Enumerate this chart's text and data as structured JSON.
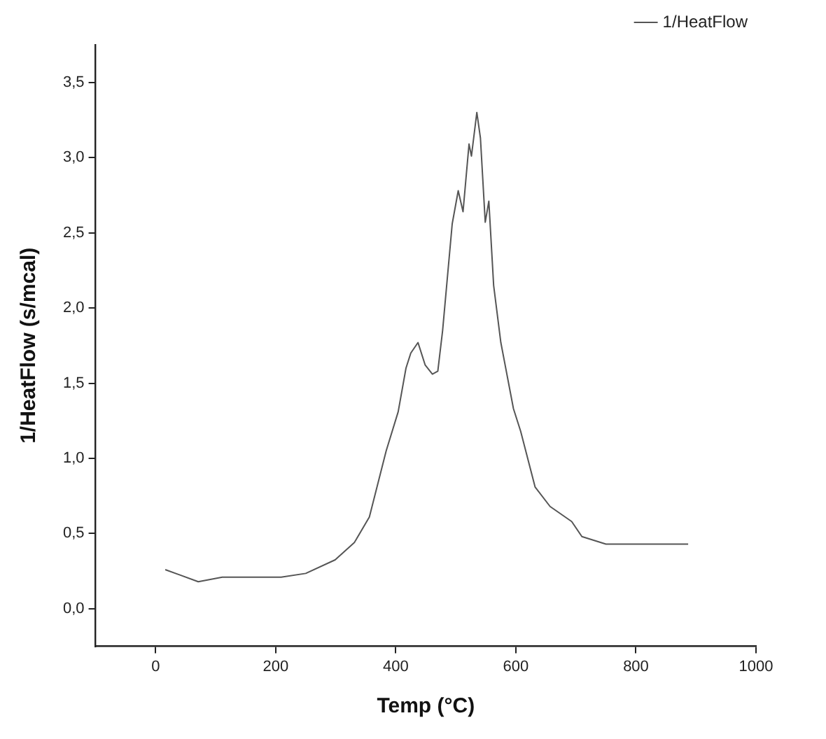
{
  "chart_data": {
    "type": "line",
    "xlabel": "Temp (°C)",
    "ylabel": "1/HeatFlow (s/mcal)",
    "xlim": [
      -100,
      1000
    ],
    "ylim": [
      -0.25,
      3.75
    ],
    "xticks": [
      0,
      200,
      400,
      600,
      800,
      1000
    ],
    "yticks": [
      {
        "value": 0,
        "label": "0,0"
      },
      {
        "value": 0.5,
        "label": "0,5"
      },
      {
        "value": 1,
        "label": "1,0"
      },
      {
        "value": 1.5,
        "label": "1,5"
      },
      {
        "value": 2,
        "label": "2,0"
      },
      {
        "value": 2.5,
        "label": "2,5"
      },
      {
        "value": 3,
        "label": "3,0"
      },
      {
        "value": 3.5,
        "label": "3,5"
      }
    ],
    "grid": false,
    "legend": "top right",
    "marker": "none",
    "line_style": "solid",
    "series": [
      {
        "name": "1/HeatFlow",
        "color": "#555555",
        "x": [
          16,
          71,
          111,
          209,
          250,
          299,
          331,
          356,
          384,
          404,
          417,
          425,
          437,
          449,
          461,
          470,
          478,
          494,
          504,
          512,
          522,
          526,
          535,
          541,
          549,
          555,
          563,
          575,
          596,
          608,
          632,
          657,
          693,
          710,
          750,
          887
        ],
        "values": [
          0.26,
          0.18,
          0.21,
          0.21,
          0.235,
          0.325,
          0.44,
          0.61,
          1.05,
          1.31,
          1.6,
          1.7,
          1.77,
          1.62,
          1.56,
          1.58,
          1.85,
          2.56,
          2.78,
          2.64,
          3.09,
          3.01,
          3.3,
          3.13,
          2.57,
          2.71,
          2.15,
          1.77,
          1.33,
          1.18,
          0.81,
          0.68,
          0.58,
          0.48,
          0.43,
          0.43
        ]
      }
    ]
  }
}
